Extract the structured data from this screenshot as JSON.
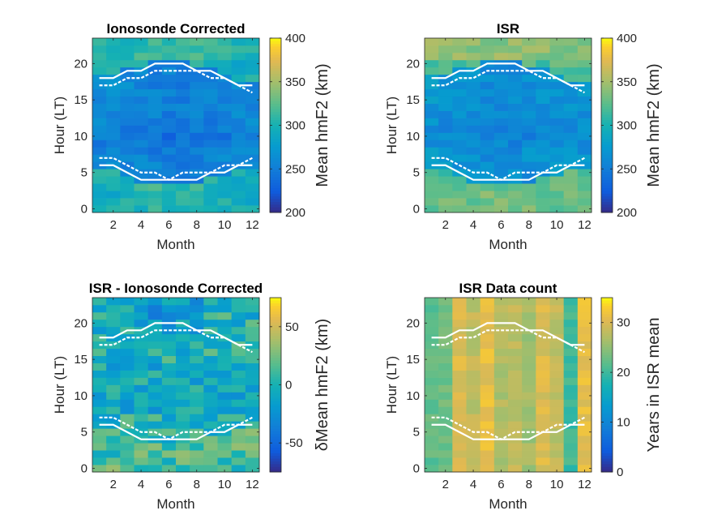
{
  "chart_data": [
    {
      "type": "heatmap",
      "title": "Ionosonde Corrected",
      "xlabel": "Month",
      "ylabel": "Hour (LT)",
      "xticks": [
        2,
        4,
        6,
        8,
        10,
        12
      ],
      "yticks": [
        0,
        5,
        10,
        15,
        20
      ],
      "xlim": [
        0.5,
        12.5
      ],
      "ylim": [
        -0.5,
        23.5
      ],
      "colorbar": {
        "label": "Mean hmF2 (km)",
        "range": [
          200,
          400
        ],
        "ticks": [
          200,
          250,
          300,
          350,
          400
        ]
      },
      "colormap": "parula",
      "pattern": "ionosonde",
      "sunrise_line": [
        6,
        6,
        5,
        4,
        4,
        4,
        4,
        4,
        5,
        5,
        6,
        6
      ],
      "sunset_line": [
        18,
        18,
        19,
        19,
        20,
        20,
        20,
        19,
        19,
        18,
        17,
        17
      ],
      "sunrise_dashed": [
        7,
        7,
        6,
        5,
        5,
        4,
        5,
        5,
        5,
        6,
        6,
        7
      ],
      "sunset_dashed": [
        17,
        17,
        18,
        18,
        19,
        19,
        19,
        19,
        18,
        18,
        17,
        16
      ]
    },
    {
      "type": "heatmap",
      "title": "ISR",
      "xlabel": "Month",
      "ylabel": "Hour (LT)",
      "xticks": [
        2,
        4,
        6,
        8,
        10,
        12
      ],
      "yticks": [
        0,
        5,
        10,
        15,
        20
      ],
      "xlim": [
        0.5,
        12.5
      ],
      "ylim": [
        -0.5,
        23.5
      ],
      "colorbar": {
        "label": "Mean hmF2 (km)",
        "range": [
          200,
          400
        ],
        "ticks": [
          200,
          250,
          300,
          350,
          400
        ]
      },
      "colormap": "parula",
      "pattern": "isr",
      "sunrise_line": [
        6,
        6,
        5,
        4,
        4,
        4,
        4,
        4,
        5,
        5,
        6,
        6
      ],
      "sunset_line": [
        18,
        18,
        19,
        19,
        20,
        20,
        20,
        19,
        19,
        18,
        17,
        17
      ],
      "sunrise_dashed": [
        7,
        7,
        6,
        5,
        5,
        4,
        5,
        5,
        5,
        6,
        6,
        7
      ],
      "sunset_dashed": [
        17,
        17,
        18,
        18,
        19,
        19,
        19,
        19,
        18,
        18,
        17,
        16
      ]
    },
    {
      "type": "heatmap",
      "title": "ISR - Ionosonde Corrected",
      "xlabel": "Month",
      "ylabel": "Hour (LT)",
      "xticks": [
        2,
        4,
        6,
        8,
        10,
        12
      ],
      "yticks": [
        0,
        5,
        10,
        15,
        20
      ],
      "xlim": [
        0.5,
        12.5
      ],
      "ylim": [
        -0.5,
        23.5
      ],
      "colorbar": {
        "label": "δMean hmF2 (km)",
        "range": [
          -75,
          75
        ],
        "ticks": [
          -50,
          0,
          50
        ]
      },
      "colormap": "parula",
      "pattern": "diff",
      "sunrise_line": [
        6,
        6,
        5,
        4,
        4,
        4,
        4,
        4,
        5,
        5,
        6,
        6
      ],
      "sunset_line": [
        18,
        18,
        19,
        19,
        20,
        20,
        20,
        19,
        19,
        18,
        17,
        17
      ],
      "sunrise_dashed": [
        7,
        7,
        6,
        5,
        5,
        4,
        5,
        5,
        5,
        6,
        6,
        7
      ],
      "sunset_dashed": [
        17,
        17,
        18,
        18,
        19,
        19,
        19,
        19,
        18,
        18,
        17,
        16
      ]
    },
    {
      "type": "heatmap",
      "title": "ISR Data count",
      "xlabel": "Month",
      "ylabel": "Hour (LT)",
      "xticks": [
        2,
        4,
        6,
        8,
        10,
        12
      ],
      "yticks": [
        0,
        5,
        10,
        15,
        20
      ],
      "xlim": [
        0.5,
        12.5
      ],
      "ylim": [
        -0.5,
        23.5
      ],
      "colorbar": {
        "label": "Years in ISR mean",
        "range": [
          0,
          35
        ],
        "ticks": [
          0,
          10,
          20,
          30
        ]
      },
      "colormap": "parula",
      "pattern": "count",
      "month_counts": [
        22,
        23,
        30,
        28,
        31,
        27,
        28,
        26,
        30,
        28,
        20,
        31
      ],
      "sunrise_line": [
        6,
        6,
        5,
        4,
        4,
        4,
        4,
        4,
        5,
        5,
        6,
        6
      ],
      "sunset_line": [
        18,
        18,
        19,
        19,
        20,
        20,
        20,
        19,
        19,
        18,
        17,
        17
      ],
      "sunrise_dashed": [
        7,
        7,
        6,
        5,
        5,
        4,
        5,
        5,
        5,
        6,
        6,
        7
      ],
      "sunset_dashed": [
        17,
        17,
        18,
        18,
        19,
        19,
        19,
        19,
        18,
        18,
        17,
        16
      ]
    }
  ]
}
